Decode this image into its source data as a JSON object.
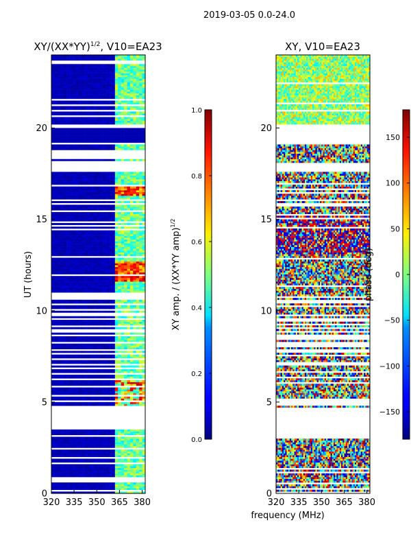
{
  "figure": {
    "suptitle": "2019-03-05 0.0-24.0",
    "xlabel": "frequency (MHz)"
  },
  "chart_data": [
    {
      "type": "heatmap",
      "title_prefix": "XY/(XX*YY)",
      "title_exp": "1/2",
      "title_suffix": ", V10=EA23",
      "xlabel": "frequency (MHz)",
      "ylabel": "UT (hours)",
      "xlim": [
        320,
        382
      ],
      "ylim": [
        0,
        24
      ],
      "xticks": [
        320,
        335,
        350,
        365,
        380
      ],
      "yticks": [
        0,
        5,
        10,
        15,
        20
      ],
      "colorbar": {
        "label_prefix": "XY amp. / (XX*YY amp)",
        "label_exp": "1/2",
        "range": [
          0.0,
          1.0
        ],
        "ticks": [
          "0.0",
          "0.2",
          "0.4",
          "0.6",
          "0.8",
          "1.0"
        ],
        "colormap": "jet"
      },
      "blank_time_ranges_hours": [
        [
          18.3,
          18.8
        ],
        [
          17.6,
          18.1
        ],
        [
          3.6,
          4.6
        ]
      ],
      "flagged_time_ranges_hours": [
        [
          19.1,
          20.2
        ]
      ],
      "high_channel_band_mhz": [
        362,
        380
      ],
      "note": "Amplitude mostly ~0.05 across band; channels 362-380 MHz ~0.4-0.6 with peaks ~0.85 near 12 h and 16.5 h"
    },
    {
      "type": "heatmap",
      "title": "XY, V10=EA23",
      "xlabel": "frequency (MHz)",
      "ylabel": "",
      "xlim": [
        320,
        382
      ],
      "ylim": [
        0,
        24
      ],
      "xticks": [
        320,
        335,
        350,
        365,
        380
      ],
      "yticks": [
        0,
        5,
        10,
        15,
        20
      ],
      "colorbar": {
        "label": "phase (deg)",
        "range": [
          -180,
          180
        ],
        "ticks": [
          "-150",
          "-100",
          "-50",
          "0",
          "50",
          "100",
          "150"
        ],
        "colormap": "jet"
      },
      "blank_time_ranges_hours": [
        [
          19.1,
          20.2
        ],
        [
          17.6,
          18.1
        ],
        [
          3.0,
          4.6
        ]
      ],
      "note": "Phase scattered across full -180..180 deg range"
    }
  ]
}
